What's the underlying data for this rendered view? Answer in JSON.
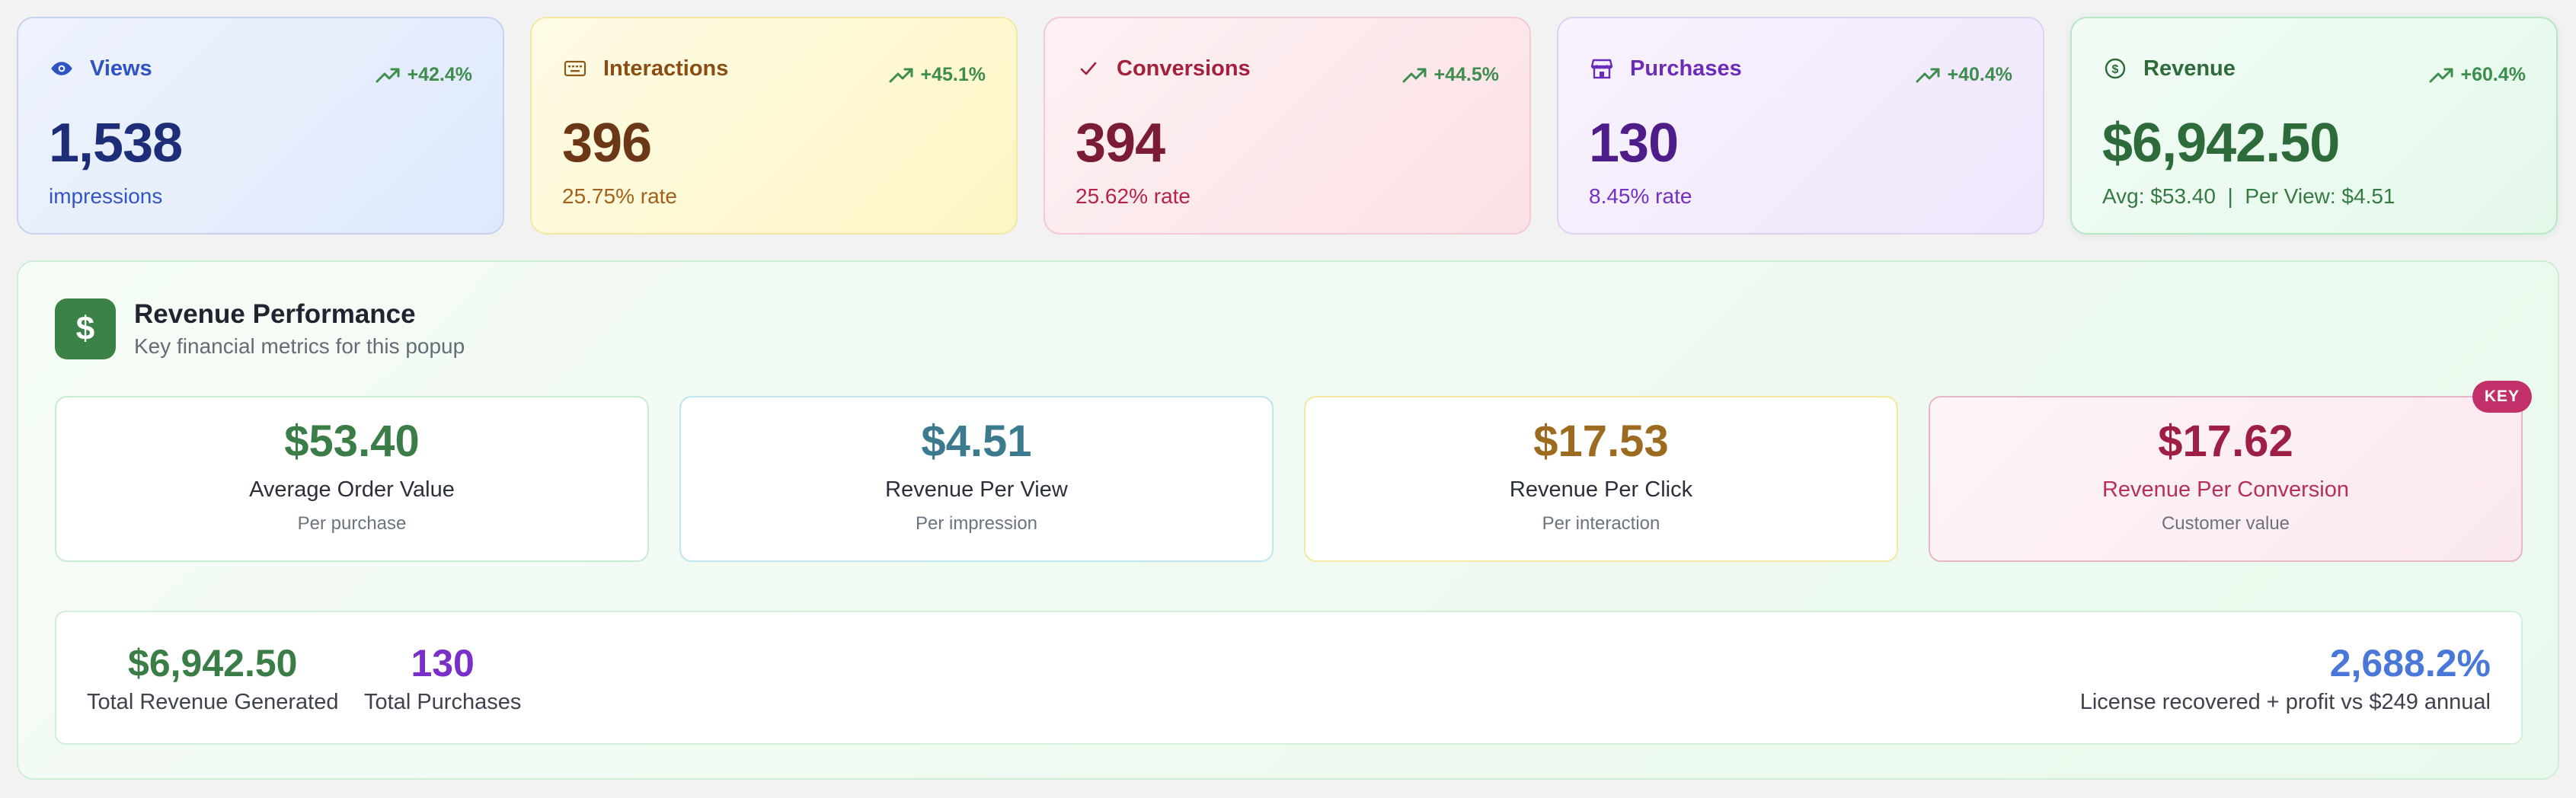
{
  "stats": [
    {
      "key": "views",
      "label": "Views",
      "icon": "eye-icon",
      "trend": "+42.4%",
      "value": "1,538",
      "sub": "impressions"
    },
    {
      "key": "interactions",
      "label": "Interactions",
      "icon": "keyboard-icon",
      "trend": "+45.1%",
      "value": "396",
      "sub": "25.75% rate"
    },
    {
      "key": "conversions",
      "label": "Conversions",
      "icon": "check-icon",
      "trend": "+44.5%",
      "value": "394",
      "sub": "25.62% rate"
    },
    {
      "key": "purchases",
      "label": "Purchases",
      "icon": "store-icon",
      "trend": "+40.4%",
      "value": "130",
      "sub": "8.45% rate"
    },
    {
      "key": "revenue",
      "label": "Revenue",
      "icon": "dollar-circle-icon",
      "trend": "+60.4%",
      "value": "$6,942.50",
      "sub": "Avg: $53.40  |  Per View: $4.51"
    }
  ],
  "panel": {
    "icon_glyph": "$",
    "title": "Revenue Performance",
    "subtitle": "Key financial metrics for this popup",
    "metrics": [
      {
        "value": "$53.40",
        "label": "Average Order Value",
        "sub": "Per purchase"
      },
      {
        "value": "$4.51",
        "label": "Revenue Per View",
        "sub": "Per impression"
      },
      {
        "value": "$17.53",
        "label": "Revenue Per Click",
        "sub": "Per interaction"
      },
      {
        "value": "$17.62",
        "label": "Revenue Per Conversion",
        "sub": "Customer value",
        "badge": "KEY"
      }
    ],
    "summary": {
      "total_revenue": {
        "value": "$6,942.50",
        "label": "Total Revenue Generated"
      },
      "total_purchases": {
        "value": "130",
        "label": "Total Purchases"
      },
      "recovered": {
        "value": "2,688.2%",
        "label": "License recovered + profit vs $249 annual"
      }
    }
  },
  "colors": {
    "trend": "#3e8d4f",
    "panel_icon_bg": "#3a8247",
    "key_badge": "#c2306a"
  }
}
